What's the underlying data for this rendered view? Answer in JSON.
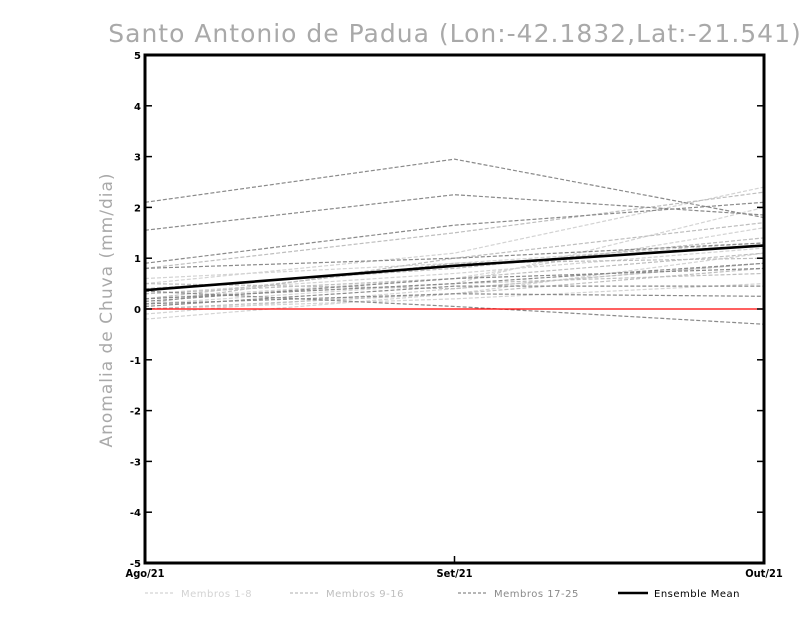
{
  "chart_data": {
    "type": "line",
    "title": "Santo Antonio de Padua (Lon:-42.1832,Lat:-21.541)",
    "ylabel": "Anomalia de Chuva (mm/dia)",
    "xlabel": "",
    "categories": [
      "Ago/21",
      "Set/21",
      "Out/21"
    ],
    "ylim": [
      -5,
      5
    ],
    "yticks": [
      -5,
      -4,
      -3,
      -2,
      -1,
      0,
      1,
      2,
      3,
      4,
      5
    ],
    "yticklabels": [
      "-5",
      "-4",
      "-3",
      "-2",
      "-1",
      "0",
      "1",
      "2",
      "3",
      "4",
      "5"
    ],
    "grid": false,
    "zero_line": {
      "value": 0,
      "color": "#ff0000"
    },
    "legend": {
      "position": "bottom",
      "entries": [
        "Membros 1-8",
        "Membros 9-16",
        "Membros 17-25",
        "Ensemble Mean"
      ]
    },
    "groups": [
      {
        "name": "Membros 1-8",
        "color": "#d3d3d3"
      },
      {
        "name": "Membros 9-16",
        "color": "#bebebe"
      },
      {
        "name": "Membros 17-25",
        "color": "#8a8a8a"
      },
      {
        "name": "Ensemble Mean",
        "color": "#000000"
      }
    ],
    "series": [
      {
        "name": "Membros 1-8",
        "values": [
          -0.2,
          0.3,
          1.1
        ]
      },
      {
        "name": "Membros 1-8",
        "values": [
          0.5,
          1.1,
          2.4
        ]
      },
      {
        "name": "Membros 1-8",
        "values": [
          0.2,
          0.6,
          1.6
        ]
      },
      {
        "name": "Membros 1-8",
        "values": [
          0.0,
          0.2,
          0.5
        ]
      },
      {
        "name": "Membros 1-8",
        "values": [
          0.6,
          0.9,
          1.3
        ]
      },
      {
        "name": "Membros 1-8",
        "values": [
          -0.1,
          0.4,
          0.9
        ]
      },
      {
        "name": "Membros 1-8",
        "values": [
          0.3,
          0.7,
          1.2
        ]
      },
      {
        "name": "Membros 1-8",
        "values": [
          0.1,
          0.5,
          2.0
        ]
      },
      {
        "name": "Membros 9-16",
        "values": [
          0.8,
          1.5,
          2.3
        ]
      },
      {
        "name": "Membros 9-16",
        "values": [
          0.2,
          0.5,
          0.7
        ]
      },
      {
        "name": "Membros 9-16",
        "values": [
          0.4,
          0.8,
          1.4
        ]
      },
      {
        "name": "Membros 9-16",
        "values": [
          0.0,
          0.3,
          0.8
        ]
      },
      {
        "name": "Membros 9-16",
        "values": [
          0.3,
          0.6,
          1.1
        ]
      },
      {
        "name": "Membros 9-16",
        "values": [
          0.1,
          1.0,
          1.7
        ]
      },
      {
        "name": "Membros 9-16",
        "values": [
          0.5,
          0.4,
          0.9
        ]
      },
      {
        "name": "Membros 9-16",
        "values": [
          0.2,
          0.9,
          1.0
        ]
      },
      {
        "name": "Membros 17-25",
        "values": [
          2.1,
          2.95,
          1.8
        ]
      },
      {
        "name": "Membros 17-25",
        "values": [
          1.55,
          2.25,
          1.85
        ]
      },
      {
        "name": "Membros 17-25",
        "values": [
          0.9,
          1.65,
          2.1
        ]
      },
      {
        "name": "Membros 17-25",
        "values": [
          0.8,
          1.0,
          1.3
        ]
      },
      {
        "name": "Membros 17-25",
        "values": [
          0.2,
          0.5,
          0.9
        ]
      },
      {
        "name": "Membros 17-25",
        "values": [
          0.1,
          0.3,
          0.25
        ]
      },
      {
        "name": "Membros 17-25",
        "values": [
          0.35,
          0.05,
          -0.3
        ]
      },
      {
        "name": "Membros 17-25",
        "values": [
          0.15,
          0.6,
          0.8
        ]
      },
      {
        "name": "Membros 17-25",
        "values": [
          0.05,
          0.45,
          0.45
        ]
      },
      {
        "name": "Ensemble Mean",
        "values": [
          0.37,
          0.85,
          1.25
        ]
      }
    ]
  }
}
